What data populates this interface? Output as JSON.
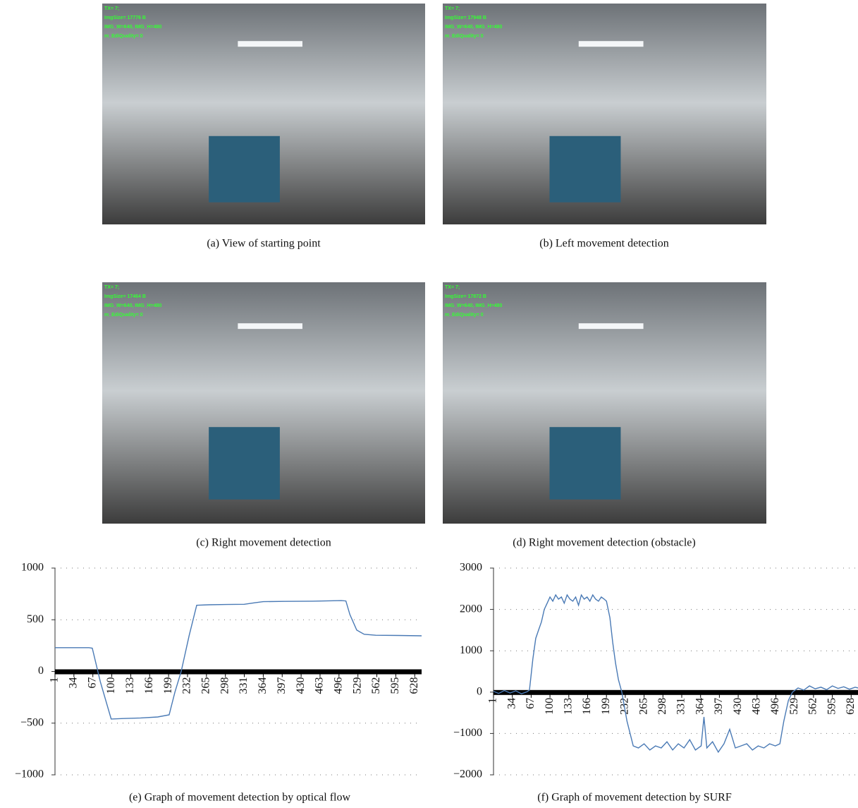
{
  "figures": [
    {
      "caption": "(a)  View of starting point",
      "overlay": [
        "TX= 7;",
        "ImgSize= 17776 B",
        "IMG_W=640, IMG_H=480",
        "m_EdiQuality= 0"
      ]
    },
    {
      "caption": "(b)  Left movement detection",
      "overlay": [
        "TX= 7;",
        "ImgSize= 17948 B",
        "IMG_W=640, IMG_H=480",
        "m_EdiQuality= 0"
      ]
    },
    {
      "caption": "(c)  Right movement detection",
      "overlay": [
        "TX= 7;",
        "ImgSize= 17464 B",
        "IMG_W=640, IMG_H=480",
        "m_EdiQuality= 0"
      ]
    },
    {
      "caption": "(d)  Right movement detection (obstacle)",
      "overlay": [
        "TX= 7;",
        "ImgSize= 17872 B",
        "IMG_W=640, IMG_H=480",
        "m_EdiQuality= 0"
      ]
    }
  ],
  "chart_data": [
    {
      "type": "line",
      "caption": "(e)  Graph of movement detection by optical flow",
      "color": "#4a7ab5",
      "grid": true,
      "xlim": [
        1,
        640
      ],
      "xticks": [
        1,
        34,
        67,
        100,
        133,
        166,
        199,
        232,
        265,
        298,
        331,
        364,
        397,
        430,
        463,
        496,
        529,
        562,
        595,
        628
      ],
      "ylim": [
        -1000,
        1000
      ],
      "yticks": [
        {
          "value": -1000,
          "label": "−1000"
        },
        {
          "value": -500,
          "label": "−500"
        },
        0,
        500,
        1000
      ],
      "x": [
        1,
        30,
        60,
        66,
        80,
        99,
        120,
        150,
        180,
        200,
        210,
        221,
        235,
        248,
        270,
        300,
        331,
        350,
        364,
        400,
        450,
        500,
        508,
        515,
        527,
        540,
        560,
        600,
        640
      ],
      "values": [
        230,
        230,
        230,
        225,
        -100,
        -460,
        -455,
        -450,
        -440,
        -420,
        -200,
        0,
        350,
        640,
        645,
        648,
        650,
        665,
        675,
        678,
        680,
        685,
        682,
        550,
        400,
        360,
        350,
        348,
        345
      ]
    },
    {
      "type": "line",
      "caption": "(f)  Graph of movement detection by SURF",
      "color": "#4a7ab5",
      "grid": true,
      "xlim": [
        1,
        640
      ],
      "xticks": [
        1,
        34,
        67,
        100,
        133,
        166,
        199,
        232,
        265,
        298,
        331,
        364,
        397,
        430,
        463,
        496,
        529,
        562,
        595,
        628
      ],
      "ylim": [
        -2000,
        3000
      ],
      "yticks": [
        {
          "value": -2000,
          "label": "−2000"
        },
        {
          "value": -1000,
          "label": "−1000"
        },
        0,
        1000,
        2000,
        3000
      ],
      "x": [
        1,
        10,
        20,
        30,
        40,
        50,
        60,
        64,
        70,
        75,
        80,
        85,
        90,
        95,
        100,
        105,
        110,
        115,
        120,
        125,
        130,
        135,
        140,
        145,
        150,
        155,
        160,
        165,
        170,
        175,
        180,
        185,
        190,
        195,
        199,
        205,
        210,
        215,
        220,
        226,
        235,
        246,
        255,
        265,
        275,
        285,
        295,
        305,
        315,
        325,
        335,
        345,
        355,
        365,
        370,
        375,
        385,
        395,
        405,
        415,
        425,
        435,
        445,
        455,
        465,
        475,
        485,
        495,
        503,
        510,
        518,
        525,
        535,
        545,
        555,
        565,
        575,
        585,
        595,
        605,
        615,
        625,
        635,
        640
      ],
      "values": [
        20,
        -30,
        40,
        -20,
        30,
        -40,
        10,
        50,
        800,
        1300,
        1500,
        1700,
        2000,
        2150,
        2300,
        2200,
        2350,
        2250,
        2300,
        2150,
        2350,
        2250,
        2200,
        2300,
        2100,
        2350,
        2250,
        2300,
        2200,
        2350,
        2250,
        2200,
        2300,
        2250,
        2200,
        1800,
        1200,
        700,
        300,
        0,
        -700,
        -1300,
        -1350,
        -1250,
        -1400,
        -1300,
        -1350,
        -1200,
        -1400,
        -1250,
        -1350,
        -1150,
        -1400,
        -1300,
        -600,
        -1350,
        -1200,
        -1450,
        -1250,
        -900,
        -1350,
        -1300,
        -1250,
        -1400,
        -1300,
        -1350,
        -1250,
        -1300,
        -1250,
        -700,
        -200,
        0,
        100,
        50,
        150,
        80,
        120,
        60,
        150,
        90,
        130,
        70,
        120,
        100
      ]
    }
  ]
}
